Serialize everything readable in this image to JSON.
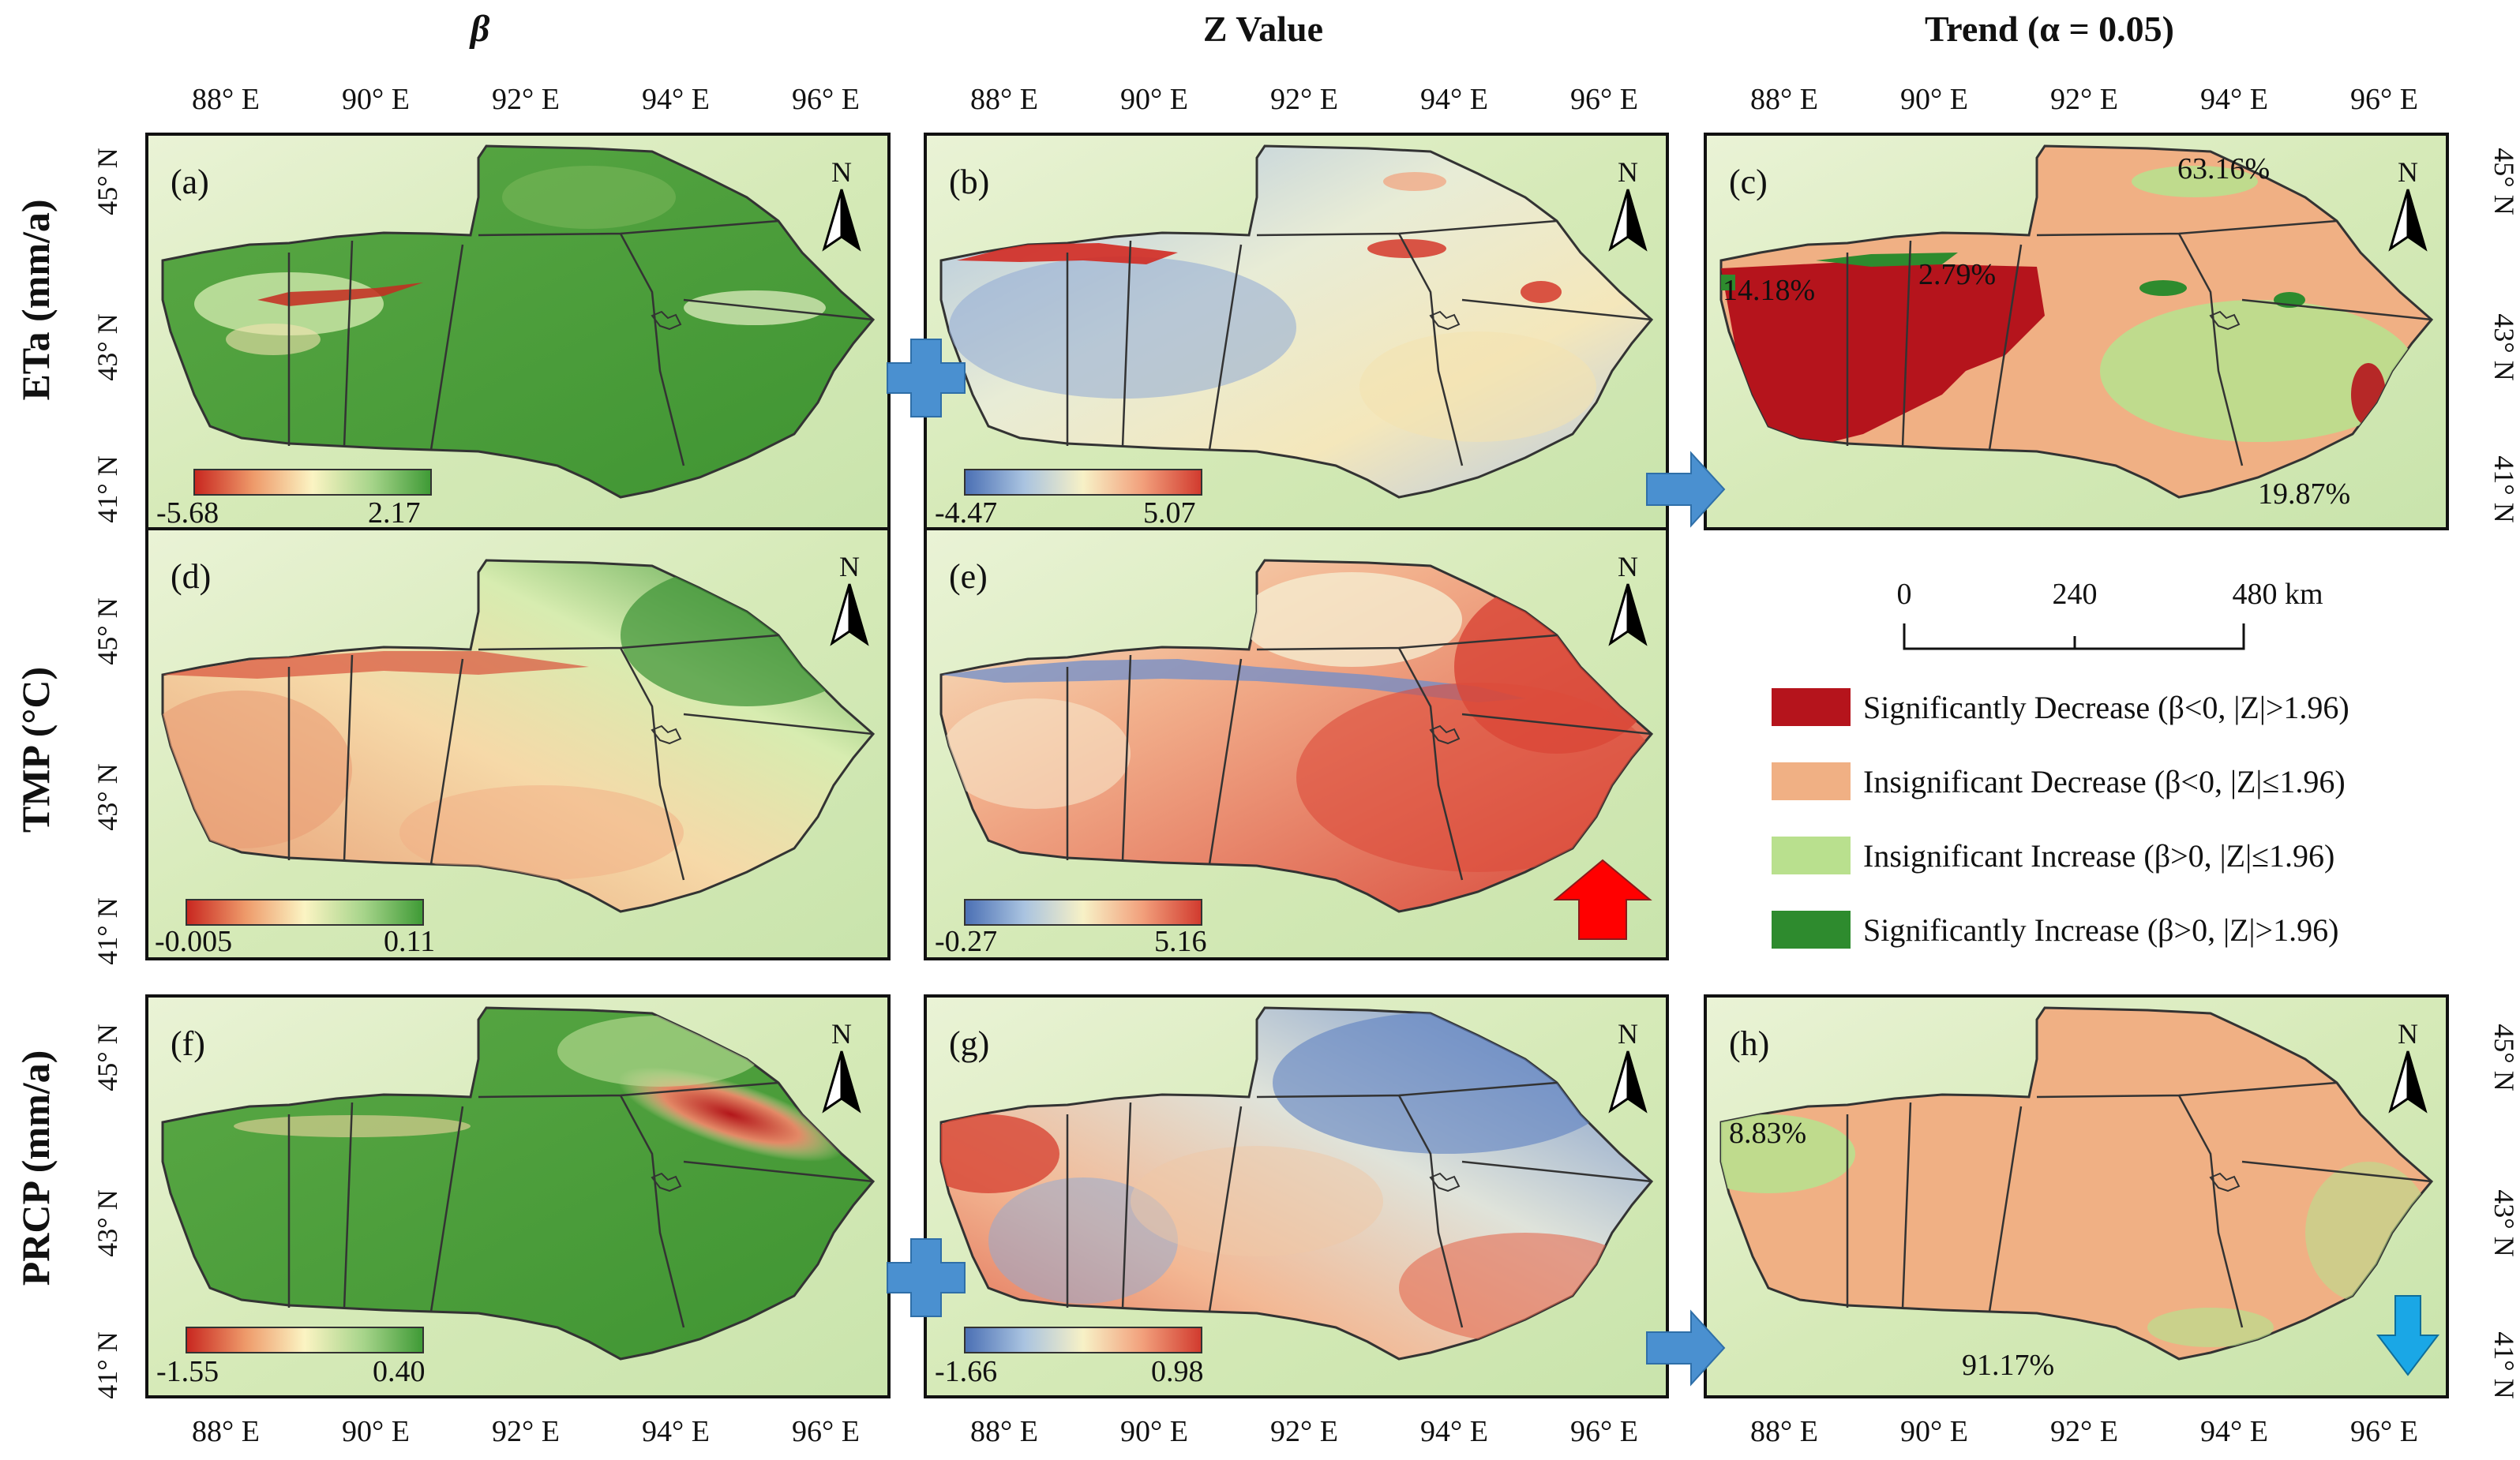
{
  "columns": {
    "beta": "β",
    "zvalue": "Z Value",
    "trend": "Trend (α = 0.05)"
  },
  "rows": {
    "eta": "ETa (mm/a)",
    "tmp": "TMP (°C)",
    "prcp": "PRCP (mm/a)"
  },
  "lon_labels": [
    "88° E",
    "90° E",
    "92° E",
    "94° E",
    "96° E"
  ],
  "lat_labels": [
    "45° N",
    "43° N",
    "41° N"
  ],
  "north_label": "N",
  "panels": {
    "a": {
      "tag": "(a)",
      "cb_min": "-5.68",
      "cb_max": "2.17"
    },
    "b": {
      "tag": "(b)",
      "cb_min": "-4.47",
      "cb_max": "5.07"
    },
    "c": {
      "tag": "(c)",
      "pct_top": "63.16%",
      "pct_left": "14.18%",
      "pct_mid": "2.79%",
      "pct_bottom": "19.87%"
    },
    "d": {
      "tag": "(d)",
      "cb_min": "-0.005",
      "cb_max": "0.11"
    },
    "e": {
      "tag": "(e)",
      "cb_min": "-0.27",
      "cb_max": "5.16"
    },
    "f": {
      "tag": "(f)",
      "cb_min": "-1.55",
      "cb_max": "0.40"
    },
    "g": {
      "tag": "(g)",
      "cb_min": "-1.66",
      "cb_max": "0.98"
    },
    "h": {
      "tag": "(h)",
      "pct_left": "8.83%",
      "pct_bottom": "91.17%"
    }
  },
  "scalebar": {
    "ticks": [
      "0",
      "240",
      "480 km"
    ]
  },
  "legend": [
    {
      "label": "Significantly Decrease (β<0, |Z|>1.96)",
      "color": "#b5141c"
    },
    {
      "label": "Insignificant Decrease (β<0, |Z|≤1.96)",
      "color": "#f0b084"
    },
    {
      "label": "Insignificant Increase (β>0, |Z|≤1.96)",
      "color": "#b9e08e"
    },
    {
      "label": "Significantly Increase (β>0, |Z|>1.96)",
      "color": "#2e8b2e"
    }
  ],
  "colors": {
    "green": "#4f9f3a",
    "red": "#c4231f",
    "blue": "#4f78b8",
    "cream": "#f4efc6",
    "orange": "#f0b084",
    "arrow_blue": "#4a90d0",
    "arrow_red": "#ff0000",
    "arrow_cyan": "#1aa7e6"
  }
}
